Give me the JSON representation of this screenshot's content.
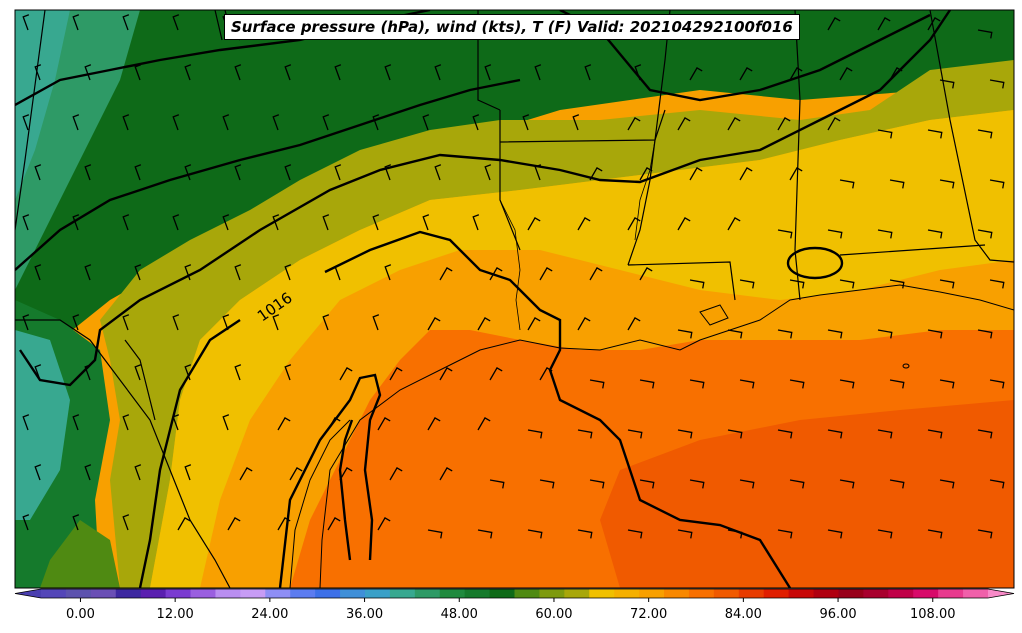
{
  "title": "Surface pressure (hPa), wind (kts), T (F) Valid: 202104292100f016",
  "isobar_label": "1016",
  "colorbar": {
    "ticks": [
      "0.00",
      "12.00",
      "24.00",
      "36.00",
      "48.00",
      "60.00",
      "72.00",
      "84.00",
      "96.00",
      "108.00"
    ],
    "colors": [
      "#4a3fb0",
      "#5346b8",
      "#5c52ae",
      "#6a4fb5",
      "#3d28a0",
      "#5a1fb0",
      "#7a3bd0",
      "#9a5fe0",
      "#b98ef0",
      "#c79cf5",
      "#8e8ef5",
      "#5c7cf0",
      "#3d70e8",
      "#3f8fd8",
      "#3aa0c8",
      "#38a890",
      "#2e9a66",
      "#1f8a3e",
      "#157a2c",
      "#0e6a18",
      "#4f8a12",
      "#7e9a0e",
      "#a8a70a",
      "#f0c000",
      "#f5b000",
      "#f8a000",
      "#f88800",
      "#f87000",
      "#f05a00",
      "#e83c00",
      "#e01e00",
      "#c80808",
      "#b00010",
      "#98001a",
      "#a8002e",
      "#c00048",
      "#d80a6a",
      "#e83a8e",
      "#f060aa",
      "#f88ac8"
    ],
    "min": -5,
    "max": 115
  }
}
